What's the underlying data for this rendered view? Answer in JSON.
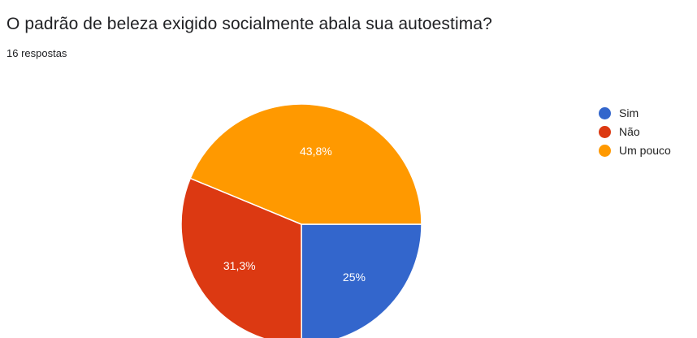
{
  "question": {
    "title": "O padrão de beleza exigido socialmente abala sua autoestima?",
    "responses": "16 respostas"
  },
  "chart_data": {
    "type": "pie",
    "title": "O padrão de beleza exigido socialmente abala sua autoestima?",
    "categories": [
      "Sim",
      "Não",
      "Um pouco"
    ],
    "values": [
      25,
      31.3,
      43.8
    ],
    "labels": [
      "25%",
      "31,3%",
      "43,8%"
    ],
    "colors": [
      "#3366cc",
      "#dc3912",
      "#ff9900"
    ],
    "legend": "right"
  }
}
